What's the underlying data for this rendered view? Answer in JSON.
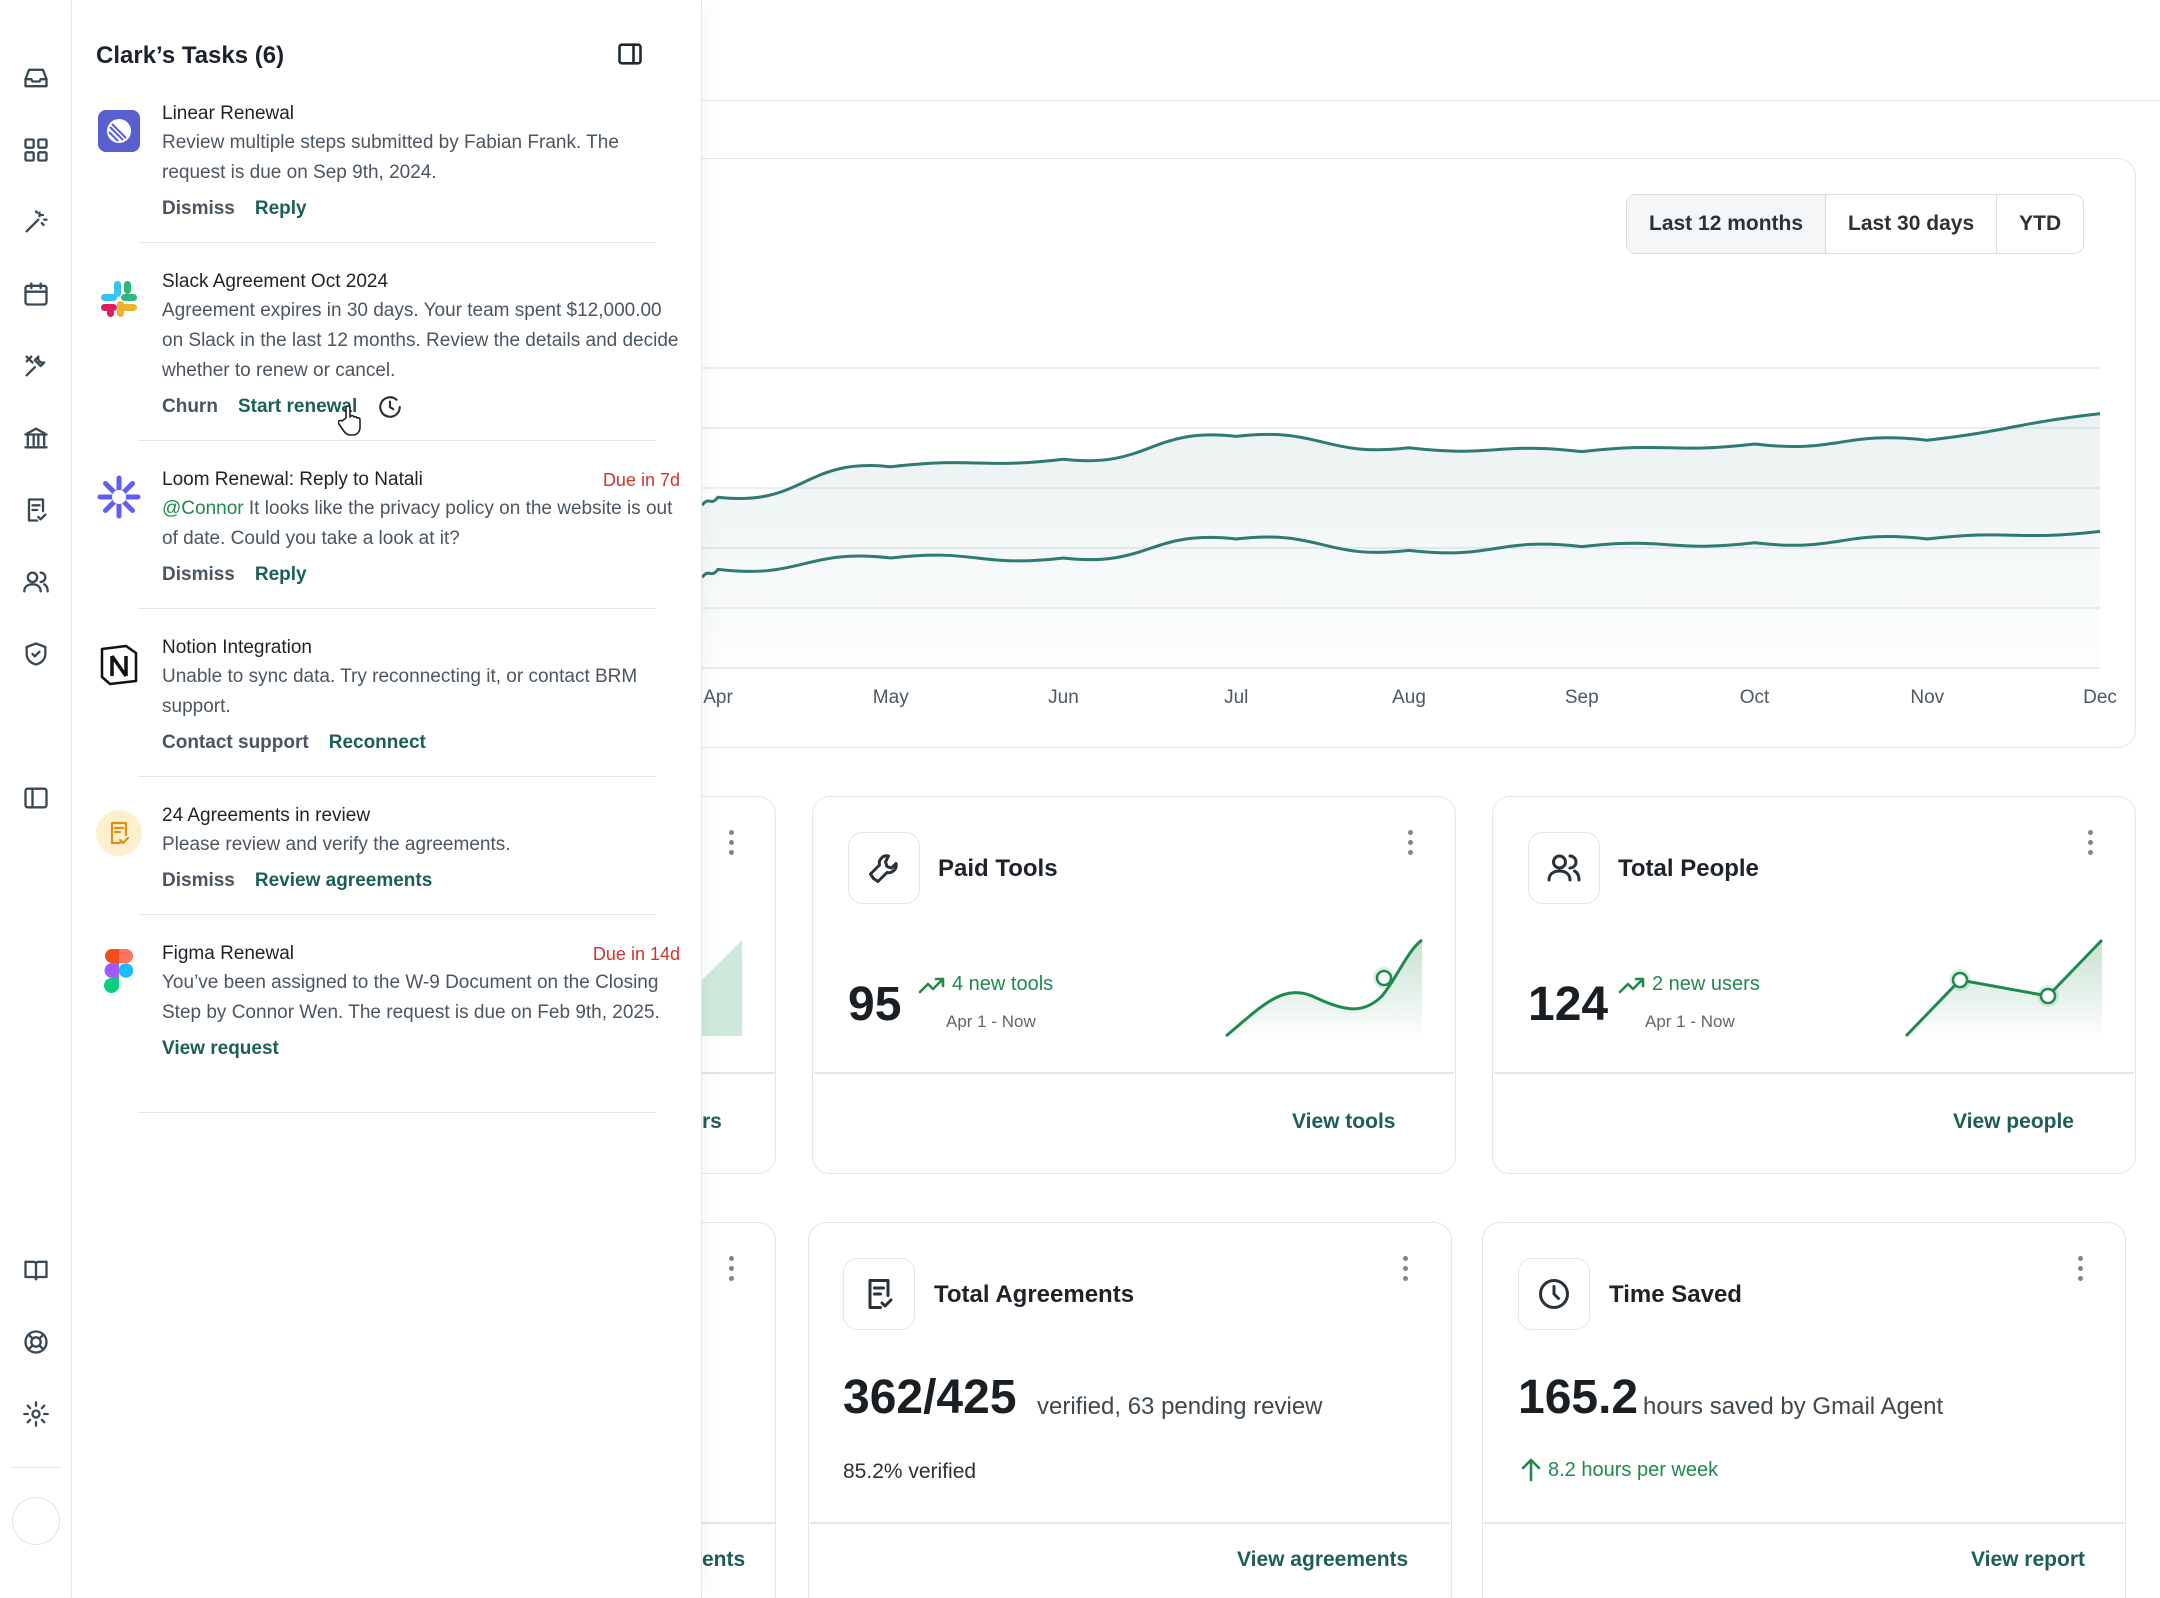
{
  "tasks_panel": {
    "title": "Clark’s Tasks (6)",
    "tasks": [
      {
        "title": "Linear Renewal",
        "text": "Review multiple steps submitted by Fabian Frank. The request is due on Sep 9th, 2024.",
        "actions": [
          "Dismiss",
          "Reply"
        ]
      },
      {
        "title": "Slack Agreement Oct 2024",
        "text": "Agreement expires in 30 days. Your team spent $12,000.00 on Slack in the last 12 months. Review the details and decide whether to renew or cancel.",
        "actions": [
          "Churn",
          "Start renewal"
        ]
      },
      {
        "title": "Loom Renewal: Reply to Natali",
        "due": "Due in 7d",
        "mention": "@Connor",
        "text": " It looks like the privacy policy on the website is out of date. Could you take a look at it?",
        "actions": [
          "Dismiss",
          "Reply"
        ]
      },
      {
        "title": "Notion Integration",
        "text": "Unable to sync data. Try reconnecting it, or contact BRM support.",
        "actions": [
          "Contact support",
          "Reconnect"
        ]
      },
      {
        "title": "24 Agreements in review",
        "text": "Please review and verify the agreements.",
        "actions": [
          "Dismiss",
          "Review agreements"
        ]
      },
      {
        "title": "Figma Renewal",
        "due": "Due in 14d",
        "text": "You’ve been assigned to the W-9 Document on the Closing Step by Connor Wen. The request is due on Feb 9th, 2025.",
        "actions": [
          "View request"
        ]
      }
    ]
  },
  "chart_card": {
    "range_options": [
      "Last 12 months",
      "Last 30 days",
      "YTD"
    ],
    "selected_range": "Last 12 months",
    "chart_data": {
      "type": "area",
      "categories": [
        "Apr",
        "May",
        "Jun",
        "Jul",
        "Aug",
        "Sep",
        "Oct",
        "Nov",
        "Dec"
      ],
      "series": [
        {
          "values": [
            56,
            64,
            66,
            72,
            69,
            68,
            70,
            71,
            78
          ]
        },
        {
          "values": [
            37,
            40,
            40,
            45,
            42,
            43,
            44,
            45,
            47
          ]
        }
      ],
      "ylim": [
        0,
        100
      ],
      "grid": true
    }
  },
  "stats": {
    "paid_tools": {
      "title": "Paid Tools",
      "value": "95",
      "trend": "4 new tools",
      "period": "Apr 1 - Now",
      "link": "View tools"
    },
    "total_people": {
      "title": "Total People",
      "value": "124",
      "trend": "2 new users",
      "period": "Apr 1 - Now",
      "link": "View people"
    },
    "total_agreements": {
      "title": "Total Agreements",
      "value": "362/425",
      "desc": "verified, 63 pending review",
      "sub": "85.2% verified",
      "link": "View agreements"
    },
    "time_saved": {
      "title": "Time Saved",
      "value": "165.2",
      "desc": "hours saved by Gmail Agent",
      "trend": "8.2 hours per week",
      "link": "View report"
    },
    "left_partial_top_link": "rs",
    "left_partial_bottom_link": "ents"
  },
  "colors": {
    "accent": "#1d5e57",
    "positive": "#1e8a4c",
    "due": "#d0342c",
    "line": "#2f7a73"
  }
}
